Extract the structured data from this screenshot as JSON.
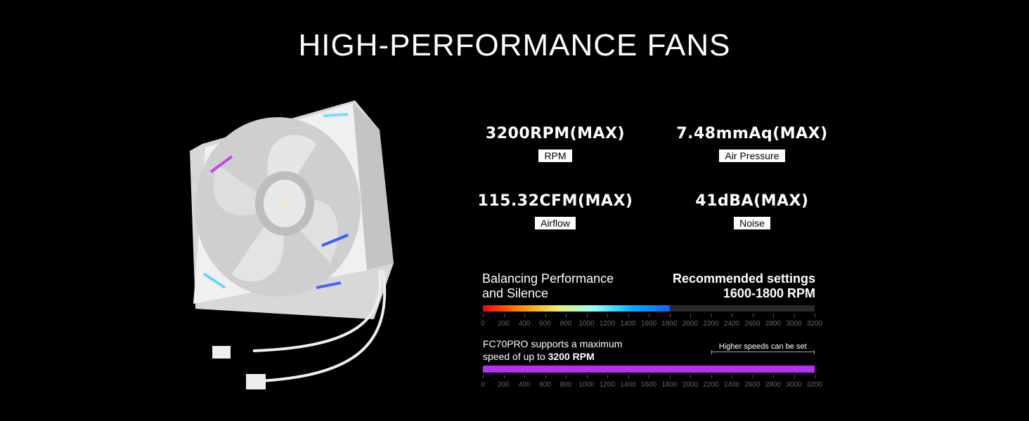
{
  "title": "HIGH-PERFORMANCE FANS",
  "specs": [
    {
      "value": "3200RPM(MAX)",
      "label": "RPM"
    },
    {
      "value": "7.48mmAq(MAX)",
      "label": "Air Pressure"
    },
    {
      "value": "115.32CFM(MAX)",
      "label": "Airflow"
    },
    {
      "value": "41dBA(MAX)",
      "label": "Noise"
    }
  ],
  "balance": {
    "line1": "Balancing Performance",
    "line2": "and Silence"
  },
  "recommended": {
    "line1": "Recommended settings",
    "line2": "1600-1800 RPM",
    "range_rpm": [
      1600,
      1800
    ],
    "gradient_end_rpm": 1800
  },
  "max": {
    "line1": "FC70PRO supports a maximum",
    "line2_prefix": "speed of up to ",
    "line2_bold": "3200 RPM",
    "max_rpm": 3200,
    "note": "Higher speeds can be set",
    "note_range_rpm": [
      2200,
      3200
    ]
  },
  "scale": {
    "min": 0,
    "max": 3200,
    "ticks": [
      0,
      200,
      400,
      600,
      800,
      1000,
      1200,
      1400,
      1600,
      1800,
      2000,
      2200,
      2400,
      2600,
      2800,
      3000,
      3200
    ]
  },
  "colors": {
    "purple": "#b72ff0",
    "track": "#2a2a2a",
    "gradient": [
      "#ff0000",
      "#ff8a00",
      "#e8f070",
      "#90ffff",
      "#00b0ff",
      "#1060ff"
    ]
  }
}
